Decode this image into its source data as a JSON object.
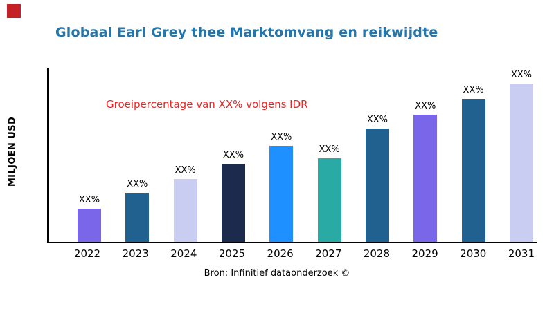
{
  "header": {
    "marker_color": "#c42127",
    "title": "Globaal Earl Grey thee Marktomvang en reikwijdte",
    "title_color": "#2576ab"
  },
  "annotation": {
    "text": "Groeipercentage van XX% volgens IDR",
    "color": "#ee2222"
  },
  "source": "Bron: Infinitief dataonderzoek ©",
  "chart_data": {
    "type": "bar",
    "title": "Globaal Earl Grey thee Marktomvang en reikwijdte",
    "xlabel": "",
    "ylabel": "MILJOEN USD",
    "categories": [
      "2022",
      "2023",
      "2024",
      "2025",
      "2026",
      "2027",
      "2028",
      "2029",
      "2030",
      "2031"
    ],
    "values": [
      19,
      28,
      36,
      45,
      55,
      48,
      65,
      73,
      82,
      91
    ],
    "bar_labels": [
      "XX%",
      "XX%",
      "XX%",
      "XX%",
      "XX%",
      "XX%",
      "XX%",
      "XX%",
      "XX%",
      "XX%"
    ],
    "bar_colors": [
      "#7a66e8",
      "#20618f",
      "#c9cdf2",
      "#1c2b4d",
      "#1e90ff",
      "#2aaaa4",
      "#20618f",
      "#7a66e8",
      "#20618f",
      "#c9cdf2"
    ],
    "ylim": [
      0,
      100
    ],
    "grid": false,
    "legend": false,
    "annotation": "Groeipercentage van XX% volgens IDR"
  }
}
